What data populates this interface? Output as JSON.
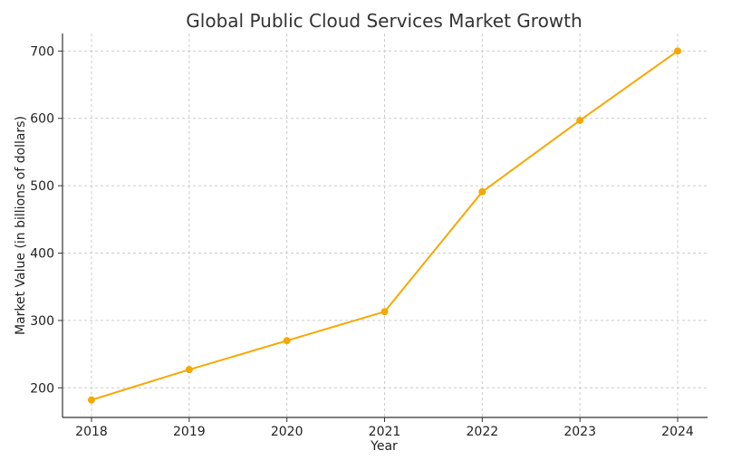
{
  "chart_data": {
    "type": "line",
    "title": "Global Public Cloud Services Market Growth",
    "xlabel": "Year",
    "ylabel": "Market Value (in billions of dollars)",
    "x": [
      "2018",
      "2019",
      "2020",
      "2021",
      "2022",
      "2023",
      "2024"
    ],
    "series": [
      {
        "values": [
          182,
          227,
          270,
          313,
          491,
          597,
          700
        ],
        "color": "#f5a800"
      }
    ],
    "yticks": [
      200,
      300,
      400,
      500,
      600,
      700
    ],
    "ylim": [
      156,
      726
    ],
    "grid": true,
    "legend": "none"
  }
}
